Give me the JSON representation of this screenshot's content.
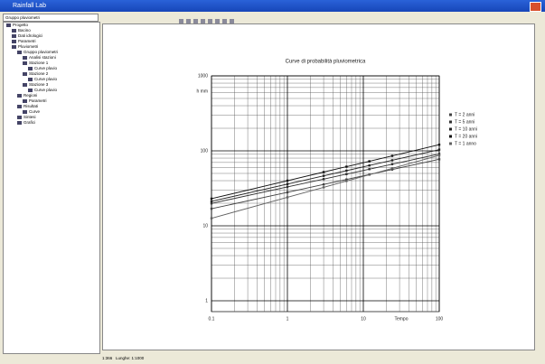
{
  "window": {
    "title": "Rainfall Lab"
  },
  "sidebar": {
    "combo": "Gruppo pluviometri",
    "tree": [
      {
        "label": "Progetto",
        "level": 0
      },
      {
        "label": "Bacino",
        "level": 1
      },
      {
        "label": "Dati idrologici",
        "level": 1
      },
      {
        "label": "Parametri",
        "level": 1
      },
      {
        "label": "Pluviometri",
        "level": 1
      },
      {
        "label": "Gruppo pluviometri",
        "level": 2
      },
      {
        "label": "Analisi stazioni",
        "level": 3
      },
      {
        "label": "Stazione 1",
        "level": 3
      },
      {
        "label": "Curve pluvio",
        "level": 4
      },
      {
        "label": "Stazione 2",
        "level": 3
      },
      {
        "label": "Curve pluvio",
        "level": 4
      },
      {
        "label": "Stazione 3",
        "level": 3
      },
      {
        "label": "Curve pluvio",
        "level": 4
      },
      {
        "label": "Regioni",
        "level": 2
      },
      {
        "label": "Parametri",
        "level": 3
      },
      {
        "label": "Risultati",
        "level": 2
      },
      {
        "label": "Curve",
        "level": 3
      },
      {
        "label": "Sintesi",
        "level": 2
      },
      {
        "label": "Grafici",
        "level": 2
      }
    ]
  },
  "status": {
    "left": "1:366",
    "right": "Lunghe: 1:1000"
  },
  "chart_data": {
    "type": "line",
    "title": "Curve di probabilità pluviometrica",
    "x_label": "Tempo",
    "y_label": "h mm",
    "log_x": true,
    "log_y": true,
    "grid": true,
    "xlim": [
      0.1,
      100
    ],
    "xticks": [
      {
        "value": 0.1,
        "label": "0.1"
      },
      1,
      10,
      100
    ],
    "ylim": [
      1,
      1000
    ],
    "yticks": [
      1,
      10,
      100,
      1000
    ],
    "x": [
      0.1,
      1,
      3,
      6,
      12,
      24,
      100
    ],
    "series": [
      {
        "name": "T = 2 anni",
        "color": "#404040",
        "values": [
          16.9,
          28,
          35.6,
          41.5,
          48.4,
          56.3,
          77.1
        ]
      },
      {
        "name": "T = 5 anni",
        "color": "#303030",
        "values": [
          19.9,
          33,
          42.0,
          48.9,
          57.0,
          66.4,
          90.9
        ]
      },
      {
        "name": "T = 10 anni",
        "color": "#202020",
        "values": [
          21.2,
          36,
          46.4,
          54.4,
          63.8,
          74.8,
          103.8
        ]
      },
      {
        "name": "T = 20 anni",
        "color": "#101010",
        "values": [
          23.0,
          40,
          52.1,
          61.5,
          72.6,
          85.7,
          120.8
        ]
      },
      {
        "name": "T = 1 anno",
        "color": "#606060",
        "values": [
          12.6,
          24,
          32.6,
          39.6,
          48.1,
          58.4,
          87.1
        ]
      }
    ],
    "legend": "right"
  }
}
